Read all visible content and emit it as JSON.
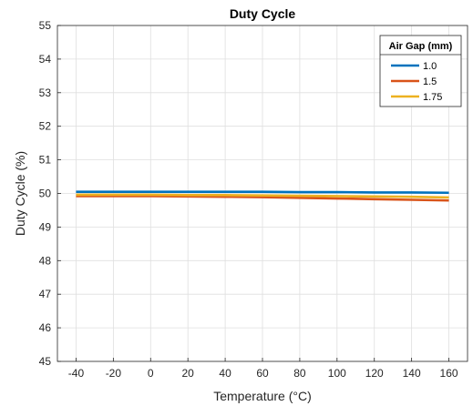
{
  "chart_data": {
    "type": "line",
    "title": "Duty Cycle",
    "xlabel": "Temperature (°C)",
    "ylabel": "Duty Cycle (%)",
    "xlim": [
      -50,
      170
    ],
    "ylim": [
      45,
      55
    ],
    "xticks": [
      -40,
      -20,
      0,
      20,
      40,
      60,
      80,
      100,
      120,
      140,
      160
    ],
    "yticks": [
      45,
      46,
      47,
      48,
      49,
      50,
      51,
      52,
      53,
      54,
      55
    ],
    "grid": true,
    "legend": {
      "title": "Air Gap (mm)",
      "position": "top-right"
    },
    "x": [
      -40,
      -20,
      0,
      20,
      40,
      60,
      80,
      100,
      120,
      140,
      160
    ],
    "series": [
      {
        "name": "1.0",
        "color": "#0072BD",
        "values": [
          50.05,
          50.05,
          50.05,
          50.05,
          50.05,
          50.05,
          50.04,
          50.04,
          50.03,
          50.03,
          50.02
        ]
      },
      {
        "name": "1.5",
        "color": "#D95319",
        "values": [
          49.92,
          49.92,
          49.92,
          49.91,
          49.9,
          49.89,
          49.87,
          49.85,
          49.83,
          49.81,
          49.79
        ]
      },
      {
        "name": "1.75",
        "color": "#EDB120",
        "values": [
          49.96,
          49.96,
          49.96,
          49.95,
          49.95,
          49.94,
          49.93,
          49.92,
          49.91,
          49.9,
          49.88
        ]
      }
    ]
  }
}
